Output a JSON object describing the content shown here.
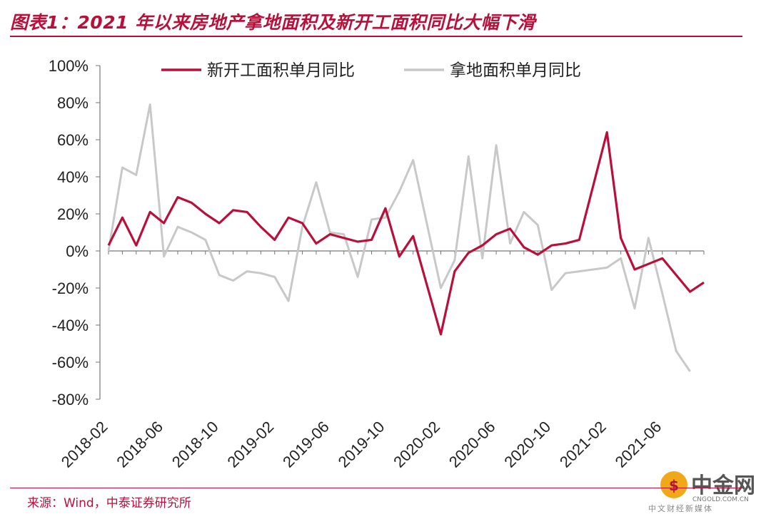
{
  "header": {
    "title": "图表1：2021 年以来房地产拿地面积及新开工面积同比大幅下滑"
  },
  "footer": {
    "source": "来源：Wind，中泰证券研究所"
  },
  "watermark": {
    "name": "中金网",
    "url": "CNGOLD.COM.CN",
    "sub": "中文财经新媒体"
  },
  "colors": {
    "new_construction": "#b8103a",
    "land": "#c8c8c8",
    "accent": "#b8103a"
  },
  "chart_data": {
    "type": "line",
    "title": "",
    "xlabel": "",
    "ylabel": "",
    "ylim": [
      -0.8,
      1.0
    ],
    "yticks": [
      1.0,
      0.8,
      0.6,
      0.4,
      0.2,
      0.0,
      -0.2,
      -0.4,
      -0.6,
      -0.8
    ],
    "ytick_labels": [
      "100%",
      "80%",
      "60%",
      "40%",
      "20%",
      "0%",
      "-20%",
      "-40%",
      "-60%",
      "-80%"
    ],
    "xtick_labels": [
      "2018-02",
      "2018-06",
      "2018-10",
      "2019-02",
      "2019-06",
      "2019-10",
      "2020-02",
      "2020-06",
      "2020-10",
      "2021-02",
      "2021-06"
    ],
    "x": [
      "2018-02",
      "2018-03",
      "2018-04",
      "2018-05",
      "2018-06",
      "2018-07",
      "2018-08",
      "2018-09",
      "2018-10",
      "2018-11",
      "2018-12",
      "2019-01",
      "2019-02",
      "2019-03",
      "2019-04",
      "2019-05",
      "2019-06",
      "2019-07",
      "2019-08",
      "2019-09",
      "2019-10",
      "2019-11",
      "2019-12",
      "2020-01",
      "2020-02",
      "2020-03",
      "2020-04",
      "2020-05",
      "2020-06",
      "2020-07",
      "2020-08",
      "2020-09",
      "2020-10",
      "2020-11",
      "2020-12",
      "2021-01",
      "2021-02",
      "2021-03",
      "2021-04",
      "2021-05",
      "2021-06",
      "2021-07",
      "2021-08",
      "2021-09"
    ],
    "legend_position": "top",
    "series": [
      {
        "name": "新开工面积单月同比",
        "color": "#b8103a",
        "values": [
          0.03,
          0.18,
          0.03,
          0.21,
          0.15,
          0.29,
          0.26,
          0.2,
          0.15,
          0.22,
          0.21,
          0.13,
          0.06,
          0.18,
          0.15,
          0.04,
          0.09,
          0.07,
          0.05,
          0.06,
          0.23,
          -0.03,
          0.08,
          null,
          -0.45,
          -0.11,
          -0.01,
          0.03,
          0.09,
          0.12,
          0.02,
          -0.02,
          0.03,
          0.04,
          0.06,
          null,
          0.64,
          0.07,
          -0.1,
          -0.07,
          -0.04,
          null,
          -0.22,
          -0.17
        ]
      },
      {
        "name": "拿地面积单月同比",
        "color": "#c8c8c8",
        "values": [
          0.0,
          0.45,
          0.41,
          0.79,
          -0.03,
          0.13,
          0.1,
          0.06,
          -0.13,
          -0.16,
          -0.11,
          -0.12,
          -0.14,
          -0.27,
          0.13,
          0.37,
          0.1,
          0.09,
          -0.14,
          0.17,
          0.18,
          0.32,
          0.49,
          null,
          -0.2,
          -0.05,
          0.51,
          -0.04,
          0.57,
          0.04,
          0.21,
          0.14,
          -0.21,
          -0.12,
          -0.11,
          -0.1,
          -0.09,
          -0.04,
          -0.31,
          0.07,
          -0.23,
          -0.54,
          -0.65,
          null
        ]
      }
    ]
  }
}
